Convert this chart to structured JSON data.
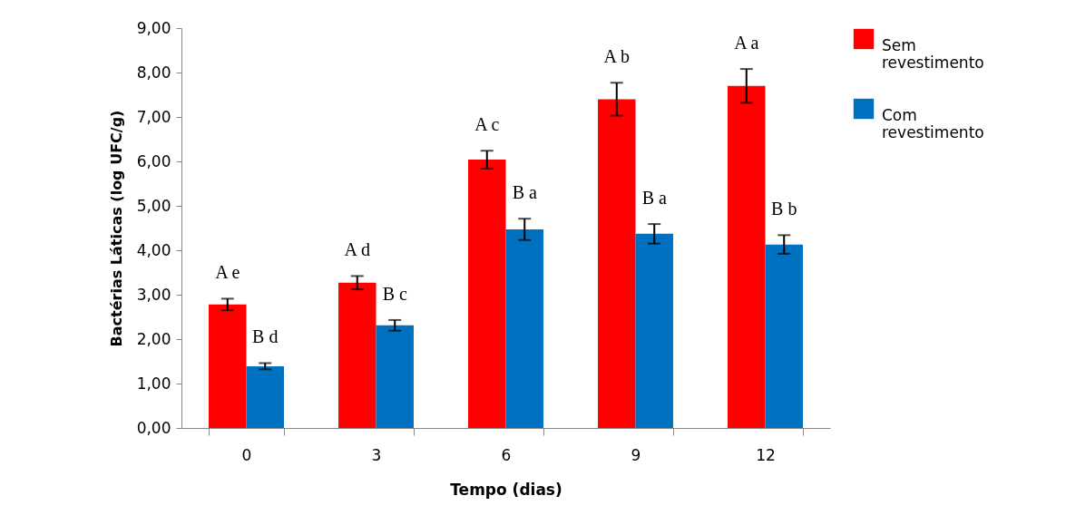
{
  "chart_data": {
    "type": "bar",
    "xlabel": "Tempo (dias)",
    "ylabel": "Bactérias Láticas (log UFC/g)",
    "categories": [
      "0",
      "3",
      "6",
      "9",
      "12"
    ],
    "series": [
      {
        "name": "Sem revestimento",
        "color": "#ff0000",
        "values": [
          2.78,
          3.27,
          6.04,
          7.4,
          7.7
        ],
        "errors": [
          0.13,
          0.15,
          0.2,
          0.37,
          0.38
        ]
      },
      {
        "name": "Com revestimento",
        "color": "#0070c0",
        "values": [
          1.39,
          2.31,
          4.47,
          4.37,
          4.13
        ],
        "errors": [
          0.07,
          0.12,
          0.24,
          0.22,
          0.21
        ]
      }
    ],
    "ylim": [
      0,
      9
    ],
    "yticks": [
      {
        "value": 0,
        "label": "0,00"
      },
      {
        "value": 1,
        "label": "1,00"
      },
      {
        "value": 2,
        "label": "2,00"
      },
      {
        "value": 3,
        "label": "3,00"
      },
      {
        "value": 4,
        "label": "4,00"
      },
      {
        "value": 5,
        "label": "5,00"
      },
      {
        "value": 6,
        "label": "6,00"
      },
      {
        "value": 7,
        "label": "7,00"
      },
      {
        "value": 8,
        "label": "8,00"
      },
      {
        "value": 9,
        "label": "9,00"
      }
    ],
    "grid": false,
    "legend": "top right",
    "annotations": [
      {
        "text": "A e",
        "x": "0",
        "y": 2.78
      },
      {
        "text": "B d",
        "x": "0",
        "y": 1.39
      },
      {
        "text": "A d",
        "x": "3",
        "y": 3.27
      },
      {
        "text": "B c",
        "x": "3",
        "y": 2.31
      },
      {
        "text": "A c",
        "x": "6",
        "y": 6.04
      },
      {
        "text": "B a",
        "x": "6",
        "y": 4.47
      },
      {
        "text": "A b",
        "x": "9",
        "y": 7.4
      },
      {
        "text": "B a",
        "x": "9",
        "y": 4.37
      },
      {
        "text": "A a",
        "x": "12",
        "y": 7.7
      },
      {
        "text": "B b",
        "x": "12",
        "y": 4.13
      }
    ]
  }
}
